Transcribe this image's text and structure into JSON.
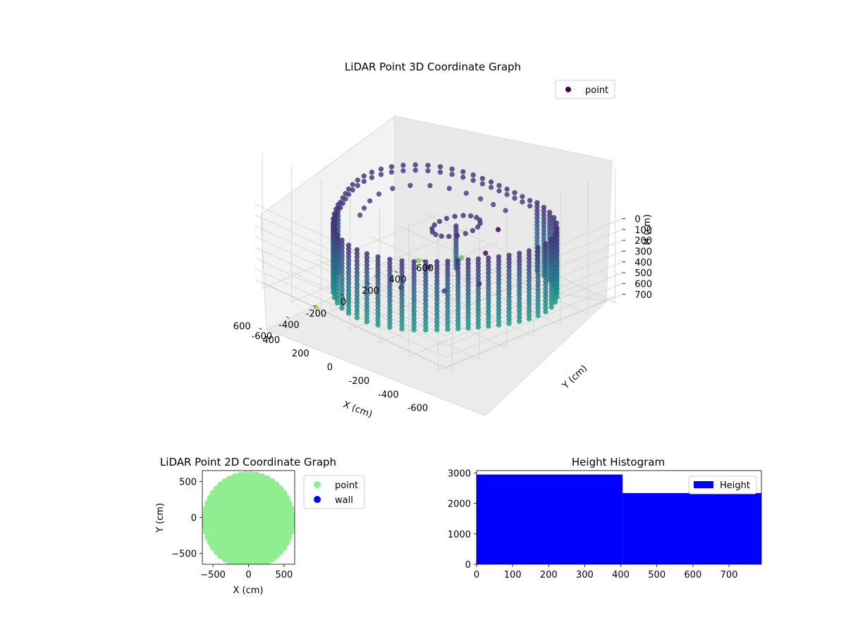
{
  "chart_data": [
    {
      "type": "scatter3d",
      "title": "LiDAR Point 3D Coordinate Graph",
      "xlabel": "X (cm)",
      "ylabel": "Y (cm)",
      "zlabel": "H (cm)",
      "xticks": [
        -600,
        -400,
        -200,
        0,
        200,
        400,
        600
      ],
      "yticks": [
        -600,
        -400,
        -200,
        0,
        200,
        400,
        600
      ],
      "zticks": [
        0,
        100,
        200,
        300,
        400,
        500,
        600,
        700
      ],
      "xlim": [
        -650,
        650
      ],
      "ylim": [
        -650,
        650
      ],
      "zlim": [
        750,
        0
      ],
      "z_inverted": true,
      "grid": true,
      "legend": {
        "position": "top-right",
        "entries": [
          {
            "label": "point",
            "color": "#440154"
          }
        ]
      },
      "colormap": "viridis",
      "series": [
        {
          "name": "point",
          "description_shape": "cylindrical wall of points, radius about 600 cm, heights 0 to 700 cm, with a central column and scattered outliers",
          "wall_radius": 600,
          "height_range": [
            0,
            700
          ],
          "outliers": [
            {
              "x": 100,
              "y": 500,
              "h": -200
            },
            {
              "x": 300,
              "y": 600,
              "h": -150
            },
            {
              "x": 500,
              "y": 400,
              "h": 0
            },
            {
              "x": 550,
              "y": 550,
              "h": 100
            },
            {
              "x": 600,
              "y": 300,
              "h": 200
            },
            {
              "x": 400,
              "y": 650,
              "h": 50
            },
            {
              "x": -600,
              "y": -400,
              "h": 1000
            },
            {
              "x": -500,
              "y": -600,
              "h": 1100
            },
            {
              "x": -300,
              "y": -700,
              "h": 1200
            },
            {
              "x": 0,
              "y": -700,
              "h": 1250
            },
            {
              "x": 200,
              "y": -650,
              "h": 1200
            }
          ]
        }
      ]
    },
    {
      "type": "scatter",
      "title": "LiDAR Point 2D Coordinate Graph",
      "xlabel": "X (cm)",
      "ylabel": "Y (cm)",
      "xlim": [
        -650,
        650
      ],
      "ylim": [
        -650,
        650
      ],
      "xticks": [
        -500,
        0,
        500
      ],
      "yticks": [
        -500,
        0,
        500
      ],
      "legend": {
        "position": "outside-right",
        "entries": [
          {
            "label": "point",
            "color": "#90ee90"
          },
          {
            "label": "wall",
            "color": "#0000ff"
          }
        ]
      },
      "series": [
        {
          "name": "point",
          "color": "#90ee90",
          "description_shape": "filled disk of points centered at origin, radius about 620 cm"
        },
        {
          "name": "wall",
          "color": "#0000ff",
          "points": []
        }
      ]
    },
    {
      "type": "bar",
      "title": "Height Histogram",
      "xlim": [
        0,
        790
      ],
      "ylim": [
        0,
        3080
      ],
      "xticks": [
        0,
        100,
        200,
        300,
        400,
        500,
        600,
        700
      ],
      "yticks": [
        0,
        1000,
        2000,
        3000
      ],
      "legend": {
        "position": "top-right",
        "entries": [
          {
            "label": "Height",
            "color": "#0000ff"
          }
        ]
      },
      "series": [
        {
          "name": "Height",
          "color": "#0000ff",
          "bins": [
            {
              "start": 0,
              "end": 405,
              "count": 2950
            },
            {
              "start": 405,
              "end": 790,
              "count": 2340
            }
          ]
        }
      ]
    }
  ]
}
